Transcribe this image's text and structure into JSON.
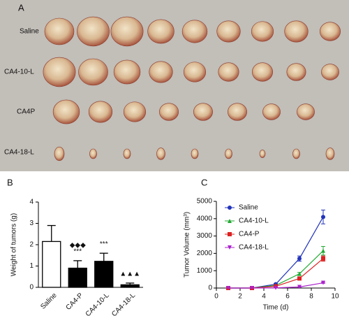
{
  "panel_a": {
    "label": "A",
    "rows": [
      "Saline",
      "CA4-10-L",
      "CA4P",
      "CA4-18-L"
    ]
  },
  "chart_data": [
    {
      "type": "bar",
      "label": "B",
      "ylabel": "Weight of tumors (g)",
      "categories": [
        "Saline",
        "CA4-P",
        "CA4-10-L",
        "CA4-18-L"
      ],
      "values": [
        2.15,
        0.9,
        1.22,
        0.12
      ],
      "errors": [
        0.75,
        0.35,
        0.38,
        0.08
      ],
      "colors": [
        "#ffffff",
        "#000000",
        "#000000",
        "#000000"
      ],
      "annotations": [
        {
          "category": "CA4-P",
          "text": "***"
        },
        {
          "category": "CA4-P",
          "text": "◆◆◆"
        },
        {
          "category": "CA4-10-L",
          "text": "***"
        },
        {
          "category": "CA4-18-L",
          "text": "▲▲▲"
        }
      ],
      "ylim": [
        0,
        4
      ],
      "yticks": [
        0,
        1,
        2,
        3,
        4
      ]
    },
    {
      "type": "line",
      "label": "C",
      "xlabel": "Time (d)",
      "ylabel": "Tumor Volume (mm³)",
      "x": [
        1,
        3,
        5,
        7,
        9
      ],
      "series": [
        {
          "name": "Saline",
          "color": "#2233bb",
          "marker": "circle",
          "values": [
            0,
            0,
            220,
            1700,
            4100
          ],
          "errors": [
            0,
            0,
            30,
            150,
            400
          ]
        },
        {
          "name": "CA4-10-L",
          "color": "#22aa33",
          "marker": "triangle",
          "values": [
            0,
            0,
            150,
            820,
            2150
          ],
          "errors": [
            0,
            0,
            20,
            80,
            250
          ]
        },
        {
          "name": "CA4-P",
          "color": "#dd2222",
          "marker": "square",
          "values": [
            0,
            0,
            100,
            550,
            1700
          ],
          "errors": [
            0,
            0,
            15,
            60,
            150
          ]
        },
        {
          "name": "CA4-18-L",
          "color": "#aa22cc",
          "marker": "down-triangle",
          "values": [
            0,
            0,
            10,
            60,
            300
          ],
          "errors": [
            0,
            0,
            5,
            10,
            30
          ]
        }
      ],
      "xlim": [
        0,
        10
      ],
      "xticks": [
        0,
        2,
        4,
        6,
        8,
        10
      ],
      "ylim": [
        0,
        5000
      ],
      "yticks": [
        0,
        1000,
        2000,
        3000,
        4000,
        5000
      ],
      "legend": "upper left"
    }
  ]
}
